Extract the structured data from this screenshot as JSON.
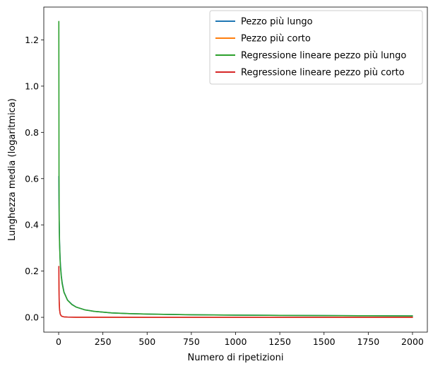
{
  "chart_data": {
    "type": "line",
    "xlabel": "Numero di ripetizioni",
    "ylabel": "Lunghezza media (logaritmica)",
    "xlim": [
      -84,
      2084
    ],
    "ylim": [
      -0.064,
      1.342
    ],
    "xticks": [
      0,
      250,
      500,
      750,
      1000,
      1250,
      1500,
      1750,
      2000
    ],
    "yticks": [
      0.0,
      0.2,
      0.4,
      0.6,
      0.8,
      1.0,
      1.2
    ],
    "xtick_labels": [
      "0",
      "250",
      "500",
      "750",
      "1000",
      "1250",
      "1500",
      "1750",
      "2000"
    ],
    "ytick_labels": [
      "0.0",
      "0.2",
      "0.4",
      "0.6",
      "0.8",
      "1.0",
      "1.2"
    ],
    "grid": false,
    "legend_position": "top-right",
    "series": [
      {
        "name": "Pezzo più lungo",
        "color": "#1f77b4",
        "x": [
          1,
          2,
          3,
          5,
          8,
          10,
          15,
          20,
          30,
          50,
          75,
          100,
          150,
          200,
          300,
          400,
          500,
          750,
          1000,
          1250,
          1500,
          1750,
          2000
        ],
        "y": [
          0.61,
          0.5,
          0.42,
          0.33,
          0.26,
          0.23,
          0.18,
          0.15,
          0.11,
          0.075,
          0.056,
          0.044,
          0.032,
          0.026,
          0.019,
          0.016,
          0.014,
          0.011,
          0.0095,
          0.0085,
          0.0075,
          0.0068,
          0.0062
        ]
      },
      {
        "name": "Pezzo più corto",
        "color": "#ff7f0e",
        "x": [
          1,
          2,
          3,
          5,
          8,
          10,
          15,
          20,
          30,
          50,
          100,
          200,
          500,
          1000,
          1500,
          2000
        ],
        "y": [
          0.22,
          0.12,
          0.07,
          0.035,
          0.018,
          0.012,
          0.006,
          0.004,
          0.002,
          0.001,
          0.0005,
          0.0003,
          0.0001,
          0.0,
          0.0,
          0.0
        ]
      },
      {
        "name": "Regressione lineare pezzo più lungo",
        "color": "#2ca02c",
        "x": [
          1,
          2,
          3,
          5,
          8,
          10,
          15,
          20,
          30,
          50,
          75,
          100,
          150,
          200,
          300,
          400,
          500,
          750,
          1000,
          1250,
          1500,
          1750,
          2000
        ],
        "y": [
          1.28,
          0.62,
          0.42,
          0.32,
          0.25,
          0.22,
          0.175,
          0.145,
          0.108,
          0.074,
          0.055,
          0.044,
          0.032,
          0.026,
          0.019,
          0.016,
          0.014,
          0.011,
          0.0095,
          0.0085,
          0.0075,
          0.0068,
          0.0062
        ]
      },
      {
        "name": "Regressione lineare pezzo più corto",
        "color": "#d62728",
        "x": [
          1,
          2,
          3,
          5,
          8,
          10,
          15,
          20,
          30,
          50,
          100,
          200,
          500,
          1000,
          1500,
          2000
        ],
        "y": [
          0.22,
          0.12,
          0.07,
          0.035,
          0.018,
          0.012,
          0.006,
          0.004,
          0.002,
          0.001,
          0.0005,
          0.0003,
          0.0001,
          0.0,
          0.0,
          0.0
        ]
      }
    ]
  }
}
